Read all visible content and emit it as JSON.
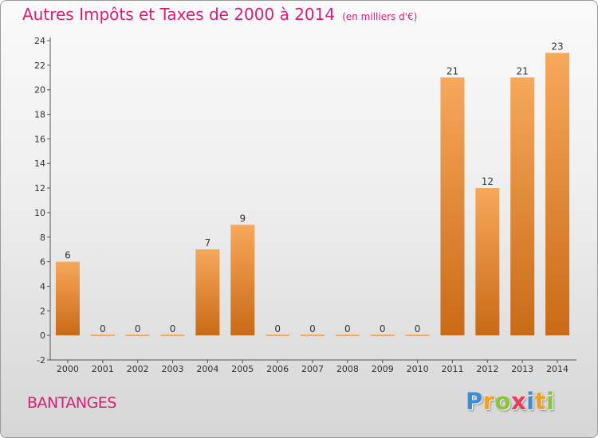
{
  "title": "Autres Impôts et Taxes de 2000 à 2014",
  "unit_note": "(en milliers d'€)",
  "commune": "BANTANGES",
  "logo": {
    "letters": [
      "P",
      "r",
      "o",
      "x",
      "i",
      "t",
      "i"
    ],
    "colors": [
      "#3a8ed8",
      "#f0a020",
      "#8ac43a",
      "#e83a5a",
      "#3a8ed8",
      "#f0a020",
      "#8ac43a"
    ]
  },
  "chart_data": {
    "type": "bar",
    "categories": [
      "2000",
      "2001",
      "2002",
      "2003",
      "2004",
      "2005",
      "2006",
      "2007",
      "2008",
      "2009",
      "2010",
      "2011",
      "2012",
      "2013",
      "2014"
    ],
    "values": [
      6,
      0,
      0,
      0,
      7,
      9,
      0,
      0,
      0,
      0,
      0,
      21,
      12,
      21,
      23
    ],
    "data_labels": [
      "6",
      "0",
      "0",
      "0",
      "7",
      "9",
      "0",
      "0",
      "0",
      "0",
      "0",
      "21",
      "12",
      "21",
      "23"
    ],
    "yticks": [
      "-2",
      "0",
      "2",
      "4",
      "6",
      "8",
      "10",
      "12",
      "14",
      "16",
      "18",
      "20",
      "22",
      "24"
    ],
    "ylim": [
      -2,
      24
    ],
    "grid": false,
    "colors": {
      "bar_light": "#f7a85a",
      "bar_dark": "#c96a16",
      "axis": "#555555",
      "text": "#333333"
    }
  }
}
